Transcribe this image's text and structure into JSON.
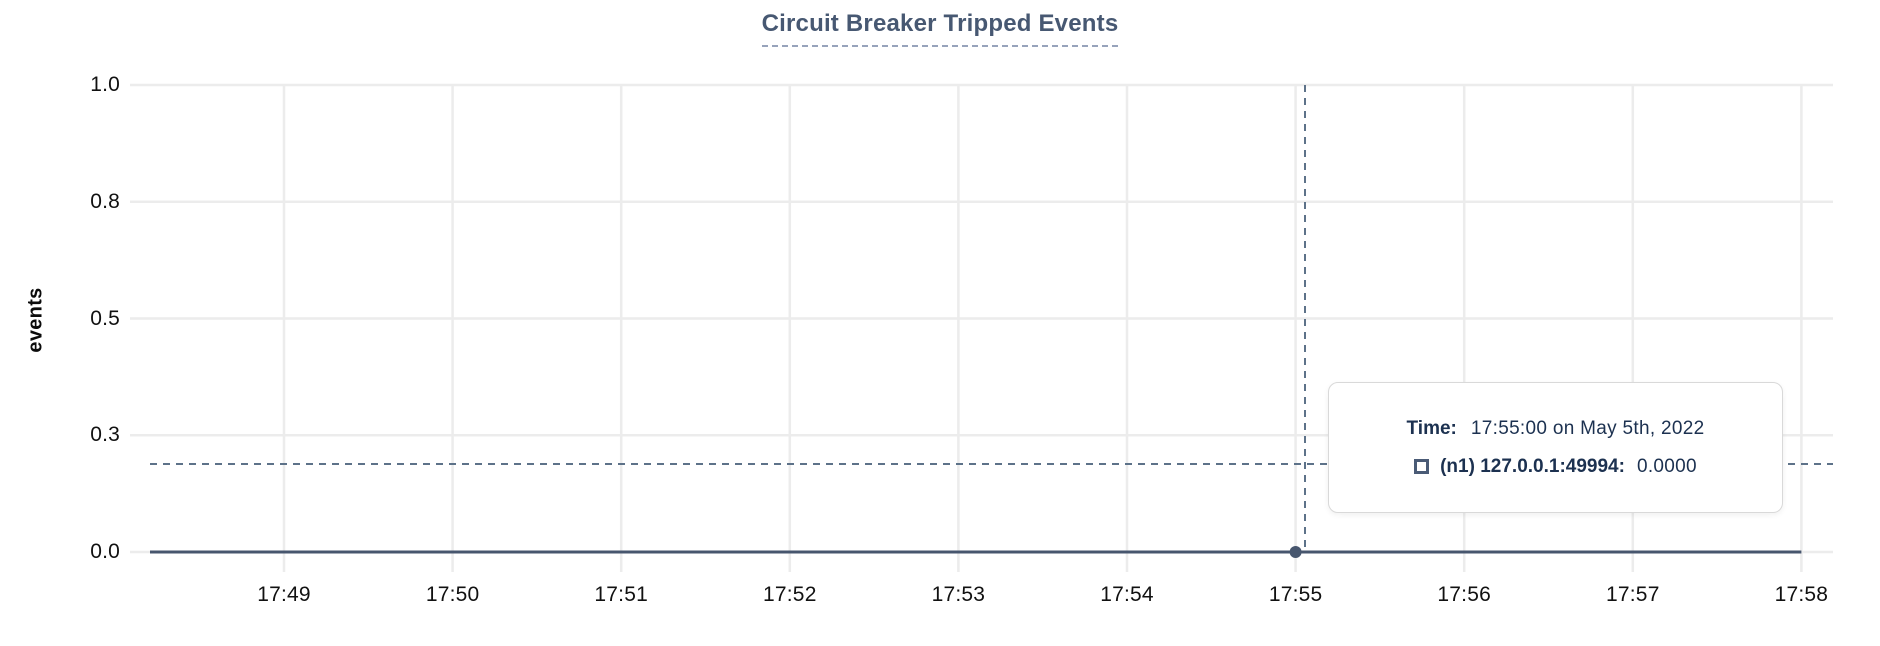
{
  "chart": {
    "title": "Circuit Breaker Tripped Events",
    "y_axis_label": "events"
  },
  "tooltip": {
    "time_label": "Time:",
    "time_value": "17:55:00 on May 5th, 2022",
    "series_swatch_icon": "open-square-swatch",
    "series_label": "(n1) 127.0.0.1:49994:",
    "series_value": "0.0000"
  },
  "colors": {
    "title": "#475872",
    "grid": "#ececec",
    "series_line": "#47566e",
    "crosshair": "#5d7289",
    "tooltip_text": "#1c3150",
    "tick_text": "#111111"
  },
  "chart_data": {
    "type": "line",
    "title": "Circuit Breaker Tripped Events",
    "xlabel": "",
    "ylabel": "events",
    "ylim": [
      0,
      1.0
    ],
    "grid": true,
    "legend_position": "tooltip-only",
    "x": [
      "17:49",
      "17:50",
      "17:51",
      "17:52",
      "17:53",
      "17:54",
      "17:55",
      "17:56",
      "17:57",
      "17:58"
    ],
    "y_ticklabels": [
      "1.0",
      "0.8",
      "0.5",
      "0.3",
      "0.0"
    ],
    "y_tick_values": [
      1.0,
      0.75,
      0.5,
      0.25,
      0.0
    ],
    "series": [
      {
        "name": "(n1) 127.0.0.1:49994",
        "values": [
          0,
          0,
          0,
          0,
          0,
          0,
          0,
          0,
          0,
          0
        ]
      }
    ],
    "highlight": {
      "x": "17:55",
      "y": 0.0,
      "time": "17:55:00 on May 5th, 2022",
      "value_label": "0.0000"
    }
  }
}
